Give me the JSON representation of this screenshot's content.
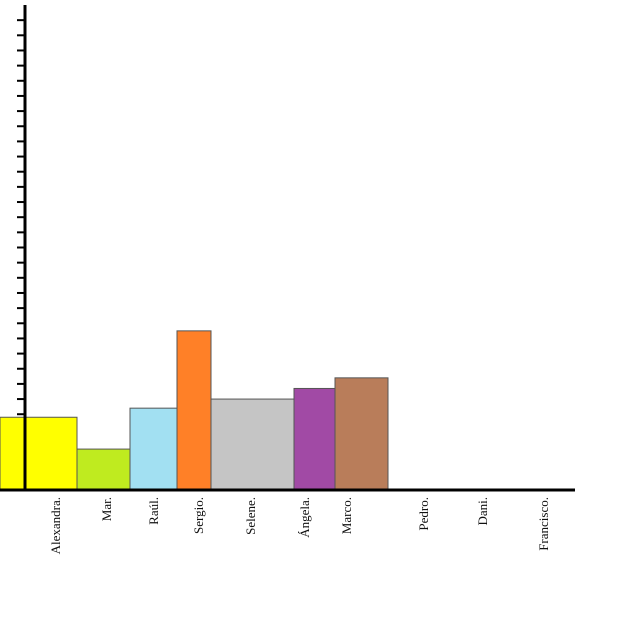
{
  "chart_data": {
    "type": "bar",
    "categories": [
      "Alexandra.",
      "Mar.",
      "Raúl.",
      "Sergio.",
      "Selene.",
      "Ángela.",
      "Marco.",
      "Pedro.",
      "Dani.",
      "Francisco."
    ],
    "values": [
      4.8,
      2.7,
      5.4,
      10.5,
      6,
      6.7,
      7.4,
      0,
      0,
      0
    ],
    "colors": [
      "#ffff00",
      "#bfeb1f",
      "#a2e0f2",
      "#ff8027",
      "#c5c5c5",
      "#a14aa5",
      "#b97d5a",
      "#888888",
      "#888888",
      "#888888"
    ],
    "ylim": [
      0,
      32
    ],
    "yticks": [
      1,
      2,
      3,
      4,
      5,
      6,
      7,
      8,
      9,
      10,
      11,
      12,
      13,
      14,
      15,
      16,
      17,
      18,
      19,
      20,
      21,
      22,
      23,
      24,
      25,
      26,
      27,
      28,
      29,
      30,
      31
    ]
  }
}
